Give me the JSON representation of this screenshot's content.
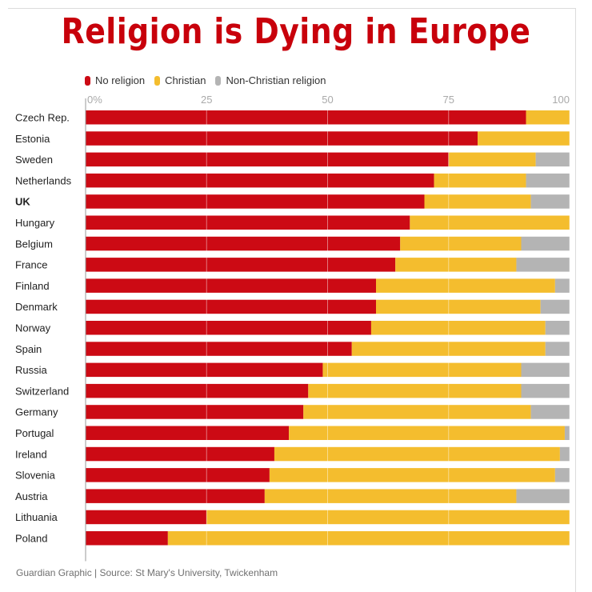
{
  "chart_data": {
    "type": "bar",
    "orientation": "horizontal",
    "stacked": true,
    "title": "Religion is Dying in Europe",
    "x_ticks": [
      "0%",
      "25",
      "50",
      "75",
      "100"
    ],
    "xlim": [
      0,
      100
    ],
    "grid": true,
    "legend_position": "top-left",
    "categories": [
      "Czech Rep.",
      "Estonia",
      "Sweden",
      "Netherlands",
      "UK",
      "Hungary",
      "Belgium",
      "France",
      "Finland",
      "Denmark",
      "Norway",
      "Spain",
      "Russia",
      "Switzerland",
      "Germany",
      "Portugal",
      "Ireland",
      "Slovenia",
      "Austria",
      "Lithuania",
      "Poland"
    ],
    "highlighted_category": "UK",
    "series": [
      {
        "name": "No religion",
        "color": "#cc0a14",
        "values": [
          91,
          81,
          75,
          72,
          70,
          67,
          65,
          64,
          60,
          60,
          59,
          55,
          49,
          46,
          45,
          42,
          39,
          38,
          37,
          25,
          17
        ]
      },
      {
        "name": "Christian",
        "color": "#f4bd2e",
        "values": [
          9,
          19,
          18,
          19,
          22,
          33,
          25,
          25,
          37,
          34,
          36,
          40,
          41,
          44,
          47,
          57,
          59,
          59,
          52,
          75,
          83
        ]
      },
      {
        "name": "Non-Christian religion",
        "color": "#b4b4b4",
        "values": [
          0,
          0,
          7,
          9,
          8,
          0,
          10,
          11,
          3,
          6,
          5,
          5,
          10,
          10,
          8,
          1,
          2,
          3,
          11,
          0,
          0
        ]
      }
    ]
  },
  "source": "Guardian Graphic | Source: St Mary's University, Twickenham"
}
